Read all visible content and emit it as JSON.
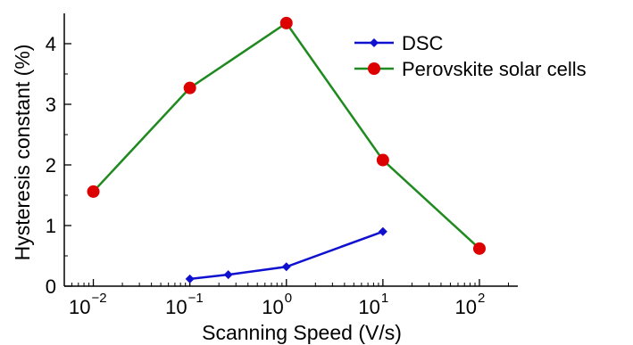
{
  "chart_data": {
    "type": "line",
    "xlabel": "Scanning Speed (V/s)",
    "ylabel": "Hysteresis constant (%)",
    "x_scale": "log",
    "xlim": [
      0.005,
      250
    ],
    "ylim": [
      0,
      4.5
    ],
    "x_ticks": [
      {
        "value": 0.01,
        "base": "10",
        "exp": "−2"
      },
      {
        "value": 0.1,
        "base": "10",
        "exp": "−1"
      },
      {
        "value": 1,
        "base": "10",
        "exp": "0"
      },
      {
        "value": 10,
        "base": "10",
        "exp": "1"
      },
      {
        "value": 100,
        "base": "10",
        "exp": "2"
      }
    ],
    "y_ticks": [
      {
        "value": 0,
        "label": "0"
      },
      {
        "value": 1,
        "label": "1"
      },
      {
        "value": 2,
        "label": "2"
      },
      {
        "value": 3,
        "label": "3"
      },
      {
        "value": 4,
        "label": "4"
      }
    ],
    "grid": false,
    "legend_position": "top-right",
    "series": [
      {
        "name": "DSC",
        "color": "#1010d0",
        "marker": "diamond",
        "x": [
          0.1,
          0.25,
          1,
          10
        ],
        "y": [
          0.12,
          0.19,
          0.32,
          0.9
        ]
      },
      {
        "name": "Perovskite solar cells",
        "color": "#1f8a1f",
        "marker": "circle",
        "marker_color": "#dd0000",
        "x": [
          0.01,
          0.1,
          1,
          10,
          100
        ],
        "y": [
          1.56,
          3.27,
          4.34,
          2.08,
          0.62
        ]
      }
    ]
  }
}
